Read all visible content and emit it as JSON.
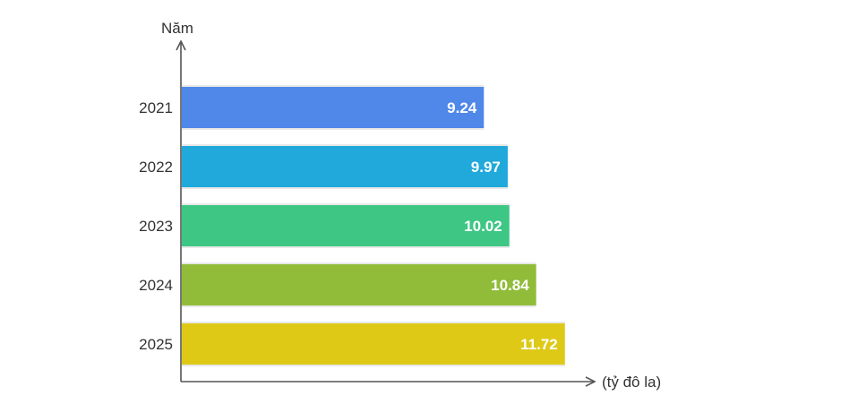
{
  "chart_data": {
    "type": "bar",
    "orientation": "horizontal",
    "ylabel": "Năm",
    "xlabel": "(tỷ đô la)",
    "categories": [
      "2021",
      "2022",
      "2023",
      "2024",
      "2025"
    ],
    "values": [
      9.24,
      9.97,
      10.02,
      10.84,
      11.72
    ],
    "value_labels": [
      "9.24",
      "9.97",
      "10.02",
      "10.84",
      "11.72"
    ],
    "colors": [
      "#4F88E8",
      "#20A9DA",
      "#3EC684",
      "#91BC3A",
      "#DEC917"
    ],
    "grid": false,
    "legend": "none"
  }
}
